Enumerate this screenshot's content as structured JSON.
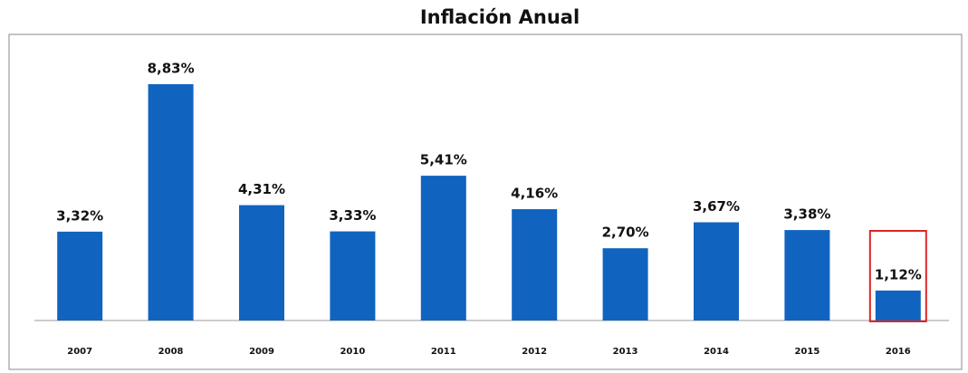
{
  "chart_data": {
    "type": "bar",
    "title": "Inflación Anual",
    "categories": [
      "2007",
      "2008",
      "2009",
      "2010",
      "2011",
      "2012",
      "2013",
      "2014",
      "2015",
      "2016"
    ],
    "values": [
      3.32,
      8.83,
      4.31,
      3.33,
      5.41,
      4.16,
      2.7,
      3.67,
      3.38,
      1.12
    ],
    "value_labels": [
      "3,32%",
      "8,83%",
      "4,31%",
      "3,33%",
      "5,41%",
      "4,16%",
      "2,70%",
      "3,67%",
      "3,38%",
      "1,12%"
    ],
    "color": "#1064c0",
    "grid": false,
    "highlight": {
      "index": 9,
      "color": "#e02424"
    }
  }
}
